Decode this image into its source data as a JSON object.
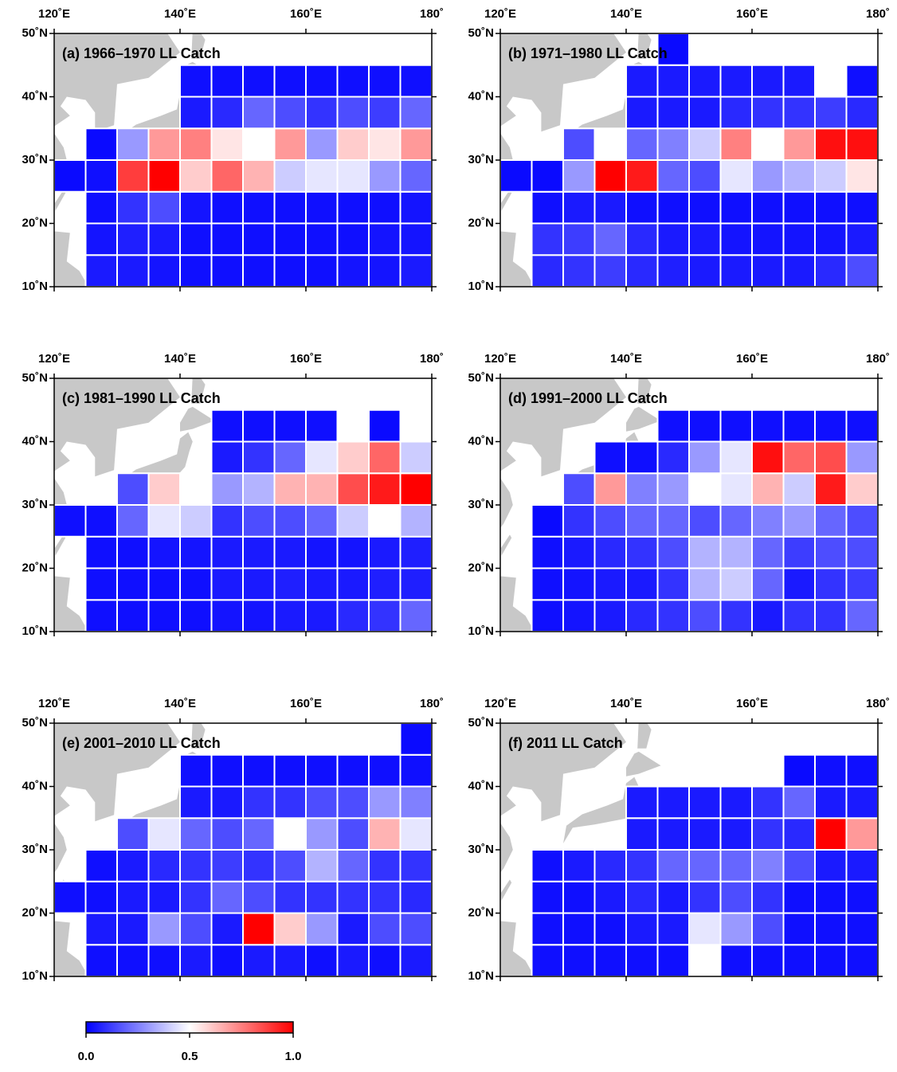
{
  "chart_data": [
    {
      "type": "heatmap",
      "title": "(a) 1966–1970 LL Catch",
      "x": [
        120,
        125,
        130,
        135,
        140,
        145,
        150,
        155,
        160,
        165,
        170,
        175,
        180
      ],
      "y": [
        10,
        15,
        20,
        25,
        30,
        35,
        40,
        45,
        50
      ],
      "xlim": [
        120,
        180
      ],
      "ylim": [
        10,
        50
      ],
      "xticks": [
        {
          "value": 120,
          "label": "120˚E"
        },
        {
          "value": 140,
          "label": "140˚E"
        },
        {
          "value": 160,
          "label": "160˚E"
        },
        {
          "value": 180,
          "label": "180˚"
        }
      ],
      "yticks": [
        {
          "value": 10,
          "label": "10˚N"
        },
        {
          "value": 20,
          "label": "20˚N"
        },
        {
          "value": 30,
          "label": "30˚N"
        },
        {
          "value": 40,
          "label": "40˚N"
        },
        {
          "value": 50,
          "label": "50˚N"
        }
      ],
      "values": [
        [
          null,
          0.05,
          0.05,
          0.04,
          0.03,
          0.03,
          0.03,
          0.03,
          0.03,
          0.04,
          0.04,
          0.05
        ],
        [
          null,
          0.04,
          0.06,
          0.05,
          0.03,
          0.03,
          0.03,
          0.03,
          0.03,
          0.03,
          0.04,
          0.04
        ],
        [
          null,
          0.03,
          0.1,
          0.15,
          0.04,
          0.03,
          0.03,
          0.03,
          0.03,
          0.03,
          0.03,
          0.04
        ],
        [
          0.02,
          0.03,
          0.88,
          1.0,
          0.6,
          0.8,
          0.65,
          0.4,
          0.45,
          0.45,
          0.3,
          0.2
        ],
        [
          null,
          0.02,
          0.3,
          0.7,
          0.75,
          0.55,
          0.5,
          0.7,
          0.3,
          0.6,
          0.55,
          0.7
        ],
        [
          null,
          null,
          null,
          null,
          0.05,
          0.08,
          0.2,
          0.15,
          0.1,
          0.15,
          0.12,
          0.2
        ],
        [
          null,
          null,
          null,
          null,
          0.03,
          0.03,
          0.03,
          0.03,
          0.03,
          0.03,
          0.03,
          0.03
        ],
        [
          null,
          null,
          null,
          null,
          null,
          null,
          null,
          null,
          null,
          null,
          null,
          null
        ]
      ]
    },
    {
      "type": "heatmap",
      "title": "(b) 1971–1980 LL Catch",
      "x": [
        120,
        125,
        130,
        135,
        140,
        145,
        150,
        155,
        160,
        165,
        170,
        175,
        180
      ],
      "y": [
        10,
        15,
        20,
        25,
        30,
        35,
        40,
        45,
        50
      ],
      "xlim": [
        120,
        180
      ],
      "ylim": [
        10,
        50
      ],
      "xticks": [
        {
          "value": 120,
          "label": "120˚E"
        },
        {
          "value": 140,
          "label": "140˚E"
        },
        {
          "value": 160,
          "label": "160˚E"
        },
        {
          "value": 180,
          "label": "180˚"
        }
      ],
      "yticks": [
        {
          "value": 10,
          "label": "10˚N"
        },
        {
          "value": 20,
          "label": "20˚N"
        },
        {
          "value": 30,
          "label": "30˚N"
        },
        {
          "value": 40,
          "label": "40˚N"
        },
        {
          "value": 50,
          "label": "50˚N"
        }
      ],
      "values": [
        [
          null,
          0.08,
          0.1,
          0.12,
          0.08,
          0.06,
          0.05,
          0.05,
          0.05,
          0.05,
          0.08,
          0.15
        ],
        [
          null,
          0.1,
          0.12,
          0.2,
          0.08,
          0.05,
          0.05,
          0.04,
          0.04,
          0.04,
          0.04,
          0.05
        ],
        [
          null,
          0.03,
          0.05,
          0.05,
          0.03,
          0.03,
          0.03,
          0.03,
          0.03,
          0.03,
          0.03,
          0.03
        ],
        [
          0.02,
          0.02,
          0.3,
          1.0,
          0.95,
          0.2,
          0.15,
          0.45,
          0.3,
          0.35,
          0.4,
          0.55
        ],
        [
          null,
          null,
          0.15,
          0.5,
          0.2,
          0.25,
          0.4,
          0.75,
          0.5,
          0.7,
          0.97,
          0.97
        ],
        [
          null,
          null,
          null,
          null,
          0.05,
          0.05,
          0.05,
          0.08,
          0.1,
          0.1,
          0.12,
          0.08
        ],
        [
          null,
          null,
          null,
          null,
          0.05,
          0.05,
          0.05,
          0.05,
          0.05,
          0.05,
          null,
          0.03
        ],
        [
          null,
          null,
          null,
          null,
          null,
          0.02,
          null,
          null,
          null,
          null,
          null,
          null
        ]
      ]
    },
    {
      "type": "heatmap",
      "title": "(c) 1981–1990 LL Catch",
      "x": [
        120,
        125,
        130,
        135,
        140,
        145,
        150,
        155,
        160,
        165,
        170,
        175,
        180
      ],
      "y": [
        10,
        15,
        20,
        25,
        30,
        35,
        40,
        45,
        50
      ],
      "xlim": [
        120,
        180
      ],
      "ylim": [
        10,
        50
      ],
      "xticks": [
        {
          "value": 120,
          "label": "120˚E"
        },
        {
          "value": 140,
          "label": "140˚E"
        },
        {
          "value": 160,
          "label": "160˚E"
        },
        {
          "value": 180,
          "label": "180˚"
        }
      ],
      "yticks": [
        {
          "value": 10,
          "label": "10˚N"
        },
        {
          "value": 20,
          "label": "20˚N"
        },
        {
          "value": 30,
          "label": "30˚N"
        },
        {
          "value": 40,
          "label": "40˚N"
        },
        {
          "value": 50,
          "label": "50˚N"
        }
      ],
      "values": [
        [
          null,
          0.03,
          0.03,
          0.03,
          0.03,
          0.04,
          0.04,
          0.05,
          0.05,
          0.08,
          0.1,
          0.2
        ],
        [
          null,
          0.03,
          0.03,
          0.03,
          0.03,
          0.05,
          0.05,
          0.06,
          0.05,
          0.05,
          0.06,
          0.06
        ],
        [
          null,
          0.03,
          0.03,
          0.04,
          0.04,
          0.05,
          0.05,
          0.05,
          0.04,
          0.04,
          0.05,
          0.06
        ],
        [
          0.03,
          0.03,
          0.2,
          0.45,
          0.4,
          0.1,
          0.15,
          0.15,
          0.2,
          0.4,
          0.5,
          0.35
        ],
        [
          null,
          null,
          0.15,
          0.6,
          0.5,
          0.3,
          0.35,
          0.65,
          0.65,
          0.85,
          0.95,
          1.0
        ],
        [
          null,
          null,
          null,
          null,
          null,
          0.05,
          0.1,
          0.2,
          0.45,
          0.6,
          0.8,
          0.4
        ],
        [
          null,
          null,
          null,
          null,
          null,
          0.03,
          0.03,
          0.03,
          0.03,
          null,
          0.02,
          null
        ],
        [
          null,
          null,
          null,
          null,
          null,
          null,
          null,
          null,
          null,
          null,
          null,
          null
        ]
      ]
    },
    {
      "type": "heatmap",
      "title": "(d) 1991–2000 LL Catch",
      "x": [
        120,
        125,
        130,
        135,
        140,
        145,
        150,
        155,
        160,
        165,
        170,
        175,
        180
      ],
      "y": [
        10,
        15,
        20,
        25,
        30,
        35,
        40,
        45,
        50
      ],
      "xlim": [
        120,
        180
      ],
      "ylim": [
        10,
        50
      ],
      "xticks": [
        {
          "value": 120,
          "label": "120˚E"
        },
        {
          "value": 140,
          "label": "140˚E"
        },
        {
          "value": 160,
          "label": "160˚E"
        },
        {
          "value": 180,
          "label": "180˚"
        }
      ],
      "yticks": [
        {
          "value": 10,
          "label": "10˚N"
        },
        {
          "value": 20,
          "label": "20˚N"
        },
        {
          "value": 30,
          "label": "30˚N"
        },
        {
          "value": 40,
          "label": "40˚N"
        },
        {
          "value": 50,
          "label": "50˚N"
        }
      ],
      "values": [
        [
          null,
          0.03,
          0.04,
          0.05,
          0.08,
          0.1,
          0.15,
          0.1,
          0.05,
          0.1,
          0.1,
          0.2
        ],
        [
          null,
          0.03,
          0.04,
          0.05,
          0.05,
          0.1,
          0.35,
          0.4,
          0.2,
          0.05,
          0.1,
          0.12
        ],
        [
          null,
          0.03,
          0.05,
          0.08,
          0.1,
          0.15,
          0.35,
          0.35,
          0.2,
          0.12,
          0.15,
          0.15
        ],
        [
          null,
          0.02,
          0.1,
          0.15,
          0.2,
          0.2,
          0.15,
          0.2,
          0.25,
          0.3,
          0.2,
          0.15
        ],
        [
          null,
          null,
          0.15,
          0.7,
          0.25,
          0.3,
          0.5,
          0.45,
          0.65,
          0.4,
          0.95,
          0.6
        ],
        [
          null,
          null,
          null,
          0.03,
          0.03,
          0.08,
          0.3,
          0.45,
          0.97,
          0.8,
          0.85,
          0.3
        ],
        [
          null,
          null,
          null,
          null,
          null,
          0.03,
          0.03,
          0.03,
          0.03,
          0.03,
          0.03,
          0.03
        ],
        [
          null,
          null,
          null,
          null,
          null,
          null,
          null,
          null,
          null,
          null,
          null,
          null
        ]
      ]
    },
    {
      "type": "heatmap",
      "title": "(e) 2001–2010 LL Catch",
      "x": [
        120,
        125,
        130,
        135,
        140,
        145,
        150,
        155,
        160,
        165,
        170,
        175,
        180
      ],
      "y": [
        10,
        15,
        20,
        25,
        30,
        35,
        40,
        45,
        50
      ],
      "xlim": [
        120,
        180
      ],
      "ylim": [
        10,
        50
      ],
      "xticks": [
        {
          "value": 120,
          "label": "120˚E"
        },
        {
          "value": 140,
          "label": "140˚E"
        },
        {
          "value": 160,
          "label": "160˚E"
        },
        {
          "value": 180,
          "label": "180˚"
        }
      ],
      "yticks": [
        {
          "value": 10,
          "label": "10˚N"
        },
        {
          "value": 20,
          "label": "20˚N"
        },
        {
          "value": 30,
          "label": "30˚N"
        },
        {
          "value": 40,
          "label": "40˚N"
        },
        {
          "value": 50,
          "label": "50˚N"
        }
      ],
      "values": [
        [
          null,
          0.03,
          0.03,
          0.03,
          0.05,
          0.03,
          0.05,
          0.05,
          0.03,
          0.05,
          0.03,
          0.05
        ],
        [
          null,
          0.05,
          0.05,
          0.3,
          0.15,
          0.05,
          1.0,
          0.6,
          0.3,
          0.05,
          0.15,
          0.15
        ],
        [
          0.03,
          0.03,
          0.05,
          0.05,
          0.1,
          0.2,
          0.15,
          0.1,
          0.1,
          0.1,
          0.1,
          0.08
        ],
        [
          null,
          0.03,
          0.05,
          0.08,
          0.1,
          0.12,
          0.1,
          0.15,
          0.35,
          0.2,
          0.1,
          0.1
        ],
        [
          null,
          null,
          0.15,
          0.45,
          0.2,
          0.15,
          0.2,
          0.5,
          0.3,
          0.15,
          0.65,
          0.45
        ],
        [
          null,
          null,
          null,
          null,
          0.05,
          0.05,
          0.1,
          0.1,
          0.15,
          0.15,
          0.3,
          0.25
        ],
        [
          null,
          null,
          null,
          null,
          0.03,
          0.03,
          0.03,
          0.03,
          0.03,
          0.03,
          0.03,
          0.03
        ],
        [
          null,
          null,
          null,
          null,
          null,
          null,
          null,
          null,
          null,
          null,
          null,
          0.02
        ]
      ]
    },
    {
      "type": "heatmap",
      "title": "(f) 2011 LL Catch",
      "x": [
        120,
        125,
        130,
        135,
        140,
        145,
        150,
        155,
        160,
        165,
        170,
        175,
        180
      ],
      "y": [
        10,
        15,
        20,
        25,
        30,
        35,
        40,
        45,
        50
      ],
      "xlim": [
        120,
        180
      ],
      "ylim": [
        10,
        50
      ],
      "xticks": [
        {
          "value": 120,
          "label": "120˚E"
        },
        {
          "value": 140,
          "label": "140˚E"
        },
        {
          "value": 160,
          "label": "160˚E"
        },
        {
          "value": 180,
          "label": "180˚"
        }
      ],
      "yticks": [
        {
          "value": 10,
          "label": "10˚N"
        },
        {
          "value": 20,
          "label": "20˚N"
        },
        {
          "value": 30,
          "label": "30˚N"
        },
        {
          "value": 40,
          "label": "40˚N"
        },
        {
          "value": 50,
          "label": "50˚N"
        }
      ],
      "values": [
        [
          null,
          0.03,
          0.03,
          0.03,
          0.03,
          0.03,
          null,
          0.03,
          0.03,
          0.03,
          0.03,
          0.03
        ],
        [
          null,
          0.03,
          0.03,
          0.03,
          0.05,
          0.05,
          0.45,
          0.3,
          0.15,
          0.03,
          0.03,
          0.03
        ],
        [
          null,
          0.03,
          0.03,
          0.05,
          0.08,
          0.05,
          0.1,
          0.15,
          0.1,
          0.03,
          0.03,
          0.03
        ],
        [
          null,
          0.03,
          0.05,
          0.08,
          0.1,
          0.2,
          0.2,
          0.2,
          0.25,
          0.15,
          0.05,
          0.05
        ],
        [
          null,
          null,
          null,
          null,
          0.05,
          0.05,
          0.05,
          0.05,
          0.1,
          0.08,
          1.0,
          0.7
        ],
        [
          null,
          null,
          null,
          null,
          0.05,
          0.05,
          0.05,
          0.05,
          0.1,
          0.2,
          0.05,
          0.05
        ],
        [
          null,
          null,
          null,
          null,
          null,
          null,
          null,
          null,
          null,
          0.02,
          0.03,
          0.03
        ],
        [
          null,
          null,
          null,
          null,
          null,
          null,
          null,
          null,
          null,
          null,
          null,
          null
        ]
      ]
    },
    {
      "type": "colorbar",
      "clim": [
        0,
        1
      ],
      "colors": [
        "#0000ff",
        "#ffffff",
        "#ff0000"
      ],
      "ticks": [
        {
          "value": 0,
          "label": "0.0"
        },
        {
          "value": 0.5,
          "label": "0.5"
        },
        {
          "value": 1,
          "label": "1.0"
        }
      ]
    }
  ]
}
